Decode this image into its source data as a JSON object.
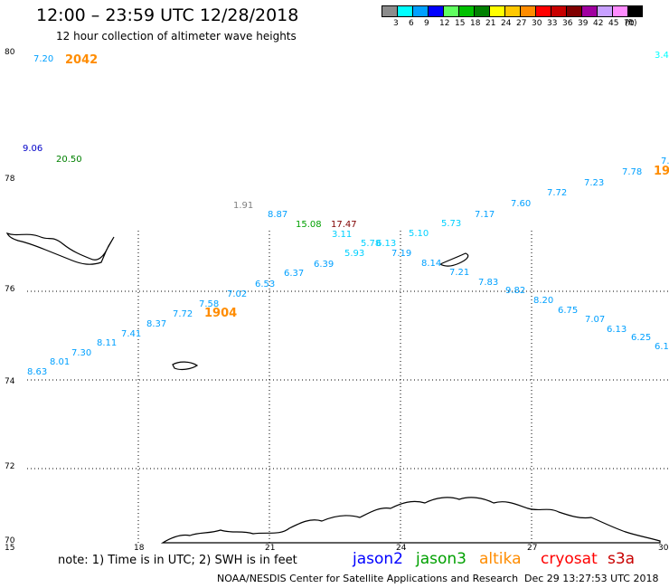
{
  "header": {
    "title": "12:00 – 23:59 UTC 12/28/2018",
    "subtitle": "12 hour collection of altimeter wave heights"
  },
  "color_scale": {
    "labels": [
      "3",
      "6",
      "9",
      "12",
      "15",
      "18",
      "21",
      "24",
      "27",
      "30",
      "33",
      "36",
      "39",
      "42",
      "45",
      "70",
      "(ft)"
    ],
    "colors": [
      "#8c8c8c",
      "#00ffff",
      "#00a0ff",
      "#0000ff",
      "#60ff60",
      "#00c000",
      "#008000",
      "#ffff00",
      "#ffc800",
      "#ff8c00",
      "#ff0000",
      "#c80000",
      "#800000",
      "#a000a0",
      "#c8a0ff",
      "#ff8cff",
      "#000000"
    ]
  },
  "map": {
    "lat_labels": [
      "80",
      "78",
      "76",
      "74",
      "72",
      "70"
    ],
    "lon_labels": [
      "15",
      "18",
      "21",
      "24",
      "27",
      "30"
    ],
    "observations": [
      {
        "text": "7.20",
        "color": "#00a0ff"
      },
      {
        "text": "2042",
        "color": "#ff8c00",
        "bold": true
      },
      {
        "text": "3.4",
        "color": "#00ffff"
      },
      {
        "text": "9.06",
        "color": "#0000c8"
      },
      {
        "text": "20.50",
        "color": "#008000"
      },
      {
        "text": "7.",
        "color": "#00a0ff"
      },
      {
        "text": "7.78",
        "color": "#00a0ff"
      },
      {
        "text": "19",
        "color": "#ff8c00",
        "bold": true
      },
      {
        "text": "7.23",
        "color": "#00a0ff"
      },
      {
        "text": "7.72",
        "color": "#00a0ff"
      },
      {
        "text": "7.60",
        "color": "#00a0ff"
      },
      {
        "text": "7.17",
        "color": "#00a0ff"
      },
      {
        "text": "1.91",
        "color": "#808080"
      },
      {
        "text": "8.87",
        "color": "#00a0ff"
      },
      {
        "text": "15.08",
        "color": "#00a000"
      },
      {
        "text": "17.47",
        "color": "#800000"
      },
      {
        "text": "3.11",
        "color": "#00d0ff"
      },
      {
        "text": "5.10",
        "color": "#00d0ff"
      },
      {
        "text": "5.73",
        "color": "#00d0ff"
      },
      {
        "text": "5.78",
        "color": "#00d0ff"
      },
      {
        "text": "6.13",
        "color": "#00d0ff"
      },
      {
        "text": "5.93",
        "color": "#00d0ff"
      },
      {
        "text": "7.19",
        "color": "#00a0ff"
      },
      {
        "text": "6.39",
        "color": "#00a0ff"
      },
      {
        "text": "8.14",
        "color": "#00a0ff"
      },
      {
        "text": "6.37",
        "color": "#00a0ff"
      },
      {
        "text": "7.21",
        "color": "#00a0ff"
      },
      {
        "text": "6.53",
        "color": "#00a0ff"
      },
      {
        "text": "7.83",
        "color": "#00a0ff"
      },
      {
        "text": "9.82",
        "color": "#00a0ff"
      },
      {
        "text": "7.02",
        "color": "#00a0ff"
      },
      {
        "text": "8.20",
        "color": "#00a0ff"
      },
      {
        "text": "7.58",
        "color": "#00a0ff"
      },
      {
        "text": "6.75",
        "color": "#00a0ff"
      },
      {
        "text": "7.72",
        "color": "#00a0ff"
      },
      {
        "text": "1904",
        "color": "#ff8c00",
        "bold": true
      },
      {
        "text": "7.07",
        "color": "#00a0ff"
      },
      {
        "text": "8.37",
        "color": "#00a0ff"
      },
      {
        "text": "6.13",
        "color": "#00a0ff"
      },
      {
        "text": "7.41",
        "color": "#00a0ff"
      },
      {
        "text": "6.25",
        "color": "#00a0ff"
      },
      {
        "text": "8.11",
        "color": "#00a0ff"
      },
      {
        "text": "6.1",
        "color": "#00a0ff"
      },
      {
        "text": "7.30",
        "color": "#00a0ff"
      },
      {
        "text": "8.01",
        "color": "#00a0ff"
      },
      {
        "text": "8.63",
        "color": "#00a0ff"
      }
    ]
  },
  "footer": {
    "note": "note: 1) Time is in UTC; 2) SWH is in feet",
    "satellites": [
      {
        "name": "jason2",
        "color": "#0000ff"
      },
      {
        "name": "jason3",
        "color": "#00a000"
      },
      {
        "name": "altika",
        "color": "#ff8c00"
      },
      {
        "name": "cryosat",
        "color": "#ff0000"
      },
      {
        "name": "s3a",
        "color": "#c80000"
      }
    ],
    "credit": "NOAA/NESDIS Center for Satellite Applications and Research",
    "timestamp": "Dec 29 13:27:53 UTC 2018"
  }
}
